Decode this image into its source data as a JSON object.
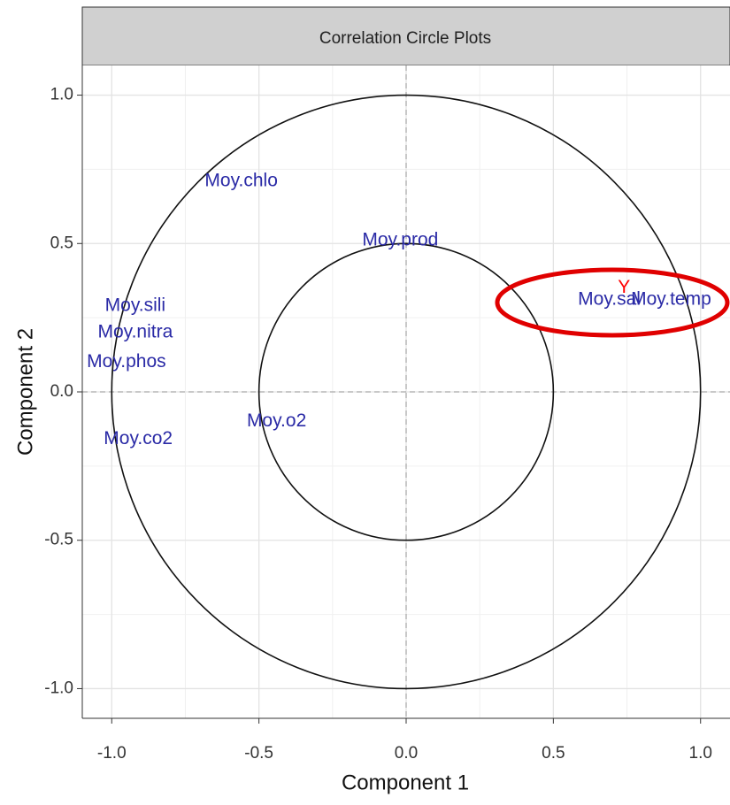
{
  "chart_data": {
    "type": "scatter",
    "title": "Correlation Circle Plots",
    "x_label": "Component 1",
    "y_label": "Component 2",
    "xlim": [
      -1.1,
      1.1
    ],
    "ylim": [
      -1.1,
      1.1
    ],
    "xticks": [
      {
        "value": -1,
        "label": "-1.0"
      },
      -0.5,
      {
        "value": 0,
        "label": "0.0"
      },
      0.5,
      {
        "value": 1,
        "label": "1.0"
      }
    ],
    "yticks": [
      {
        "value": -1,
        "label": "-1.0"
      },
      -0.5,
      {
        "value": 0,
        "label": "0.0"
      },
      0.5,
      {
        "value": 1,
        "label": "1.0"
      }
    ],
    "grid": true,
    "circle_radii": [
      1,
      0.5
    ],
    "series": [
      {
        "color": "#2a2aa6",
        "labels": [
          "Moy.chlo",
          "Moy.prod",
          "Moy.sili",
          "Moy.nitra",
          "Moy.phos",
          "Moy.co2",
          "Moy.o2",
          "Moy.sal",
          "Moy.temp"
        ],
        "x": [
          -0.56,
          -0.02,
          -0.92,
          -0.92,
          -0.95,
          -0.91,
          -0.44,
          0.69,
          0.9
        ],
        "values": [
          0.71,
          0.51,
          0.29,
          0.2,
          0.1,
          -0.16,
          -0.1,
          0.31,
          0.31
        ]
      },
      {
        "color": "#ff0000",
        "labels": [
          "Y"
        ],
        "x": [
          0.74
        ],
        "values": [
          0.35
        ]
      }
    ]
  }
}
